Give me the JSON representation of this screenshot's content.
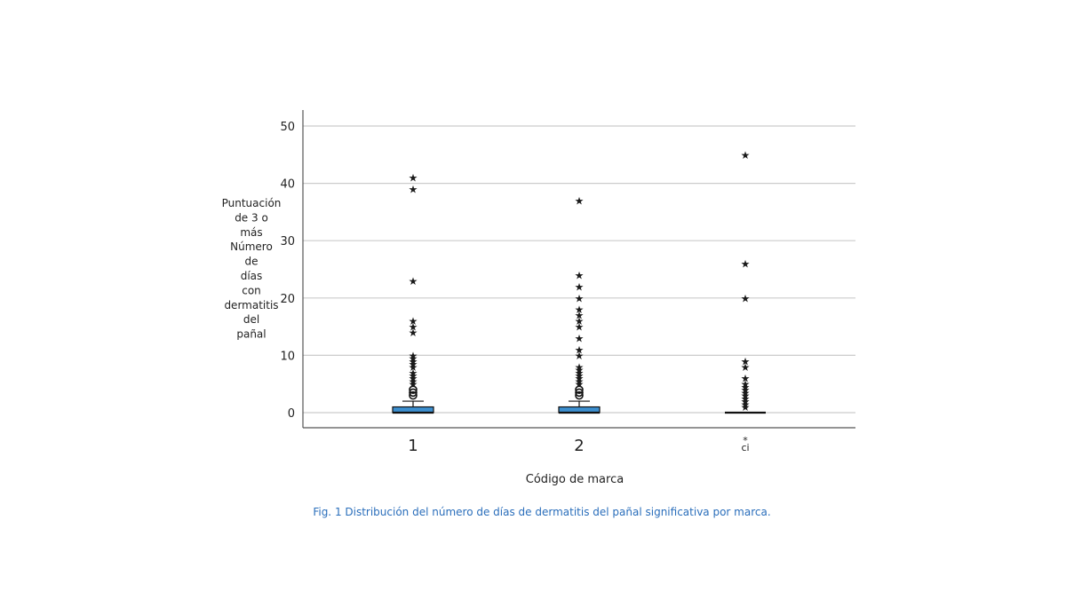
{
  "chart_data": {
    "type": "boxplot",
    "ylabel_lines": [
      "Puntuación",
      "de 3 o",
      "más",
      "Número",
      "de",
      "días",
      "con",
      "dermatitis",
      "del",
      "pañal"
    ],
    "xlabel": "Código de marca",
    "ylim": [
      -2.5,
      52.5
    ],
    "yticks": [
      0,
      10,
      20,
      30,
      40,
      50
    ],
    "gridlines": true,
    "box_color": "#3c8fcf",
    "groups": [
      {
        "label": "1",
        "min": 0,
        "q1": 0,
        "median": 0,
        "q3": 1,
        "whisker_high": 2,
        "outliers_circle": [
          3,
          3.5,
          4
        ],
        "outliers_star": [
          5,
          5.5,
          6,
          6.5,
          7,
          8,
          8.5,
          9,
          9.5,
          10,
          14,
          15,
          16,
          23,
          39,
          41
        ]
      },
      {
        "label": "2",
        "min": 0,
        "q1": 0,
        "median": 0,
        "q3": 1,
        "whisker_high": 2,
        "outliers_circle": [
          3,
          3.5,
          4
        ],
        "outliers_star": [
          5,
          5.5,
          6,
          6.5,
          7,
          7.5,
          8,
          10,
          11,
          13,
          15,
          16,
          17,
          18,
          20,
          22,
          24,
          37
        ]
      },
      {
        "label": "ci",
        "label_marker": "*",
        "min": 0,
        "q1": 0,
        "median": 0,
        "q3": 0,
        "whisker_high": 0,
        "outliers_circle": [],
        "outliers_star": [
          1,
          1.5,
          2,
          2.5,
          3,
          3.5,
          4,
          4.5,
          5,
          6,
          8,
          9,
          20,
          26,
          45
        ]
      }
    ]
  },
  "caption": "Fig. 1 Distribución del número de días de dermatitis del pañal significativa por marca."
}
